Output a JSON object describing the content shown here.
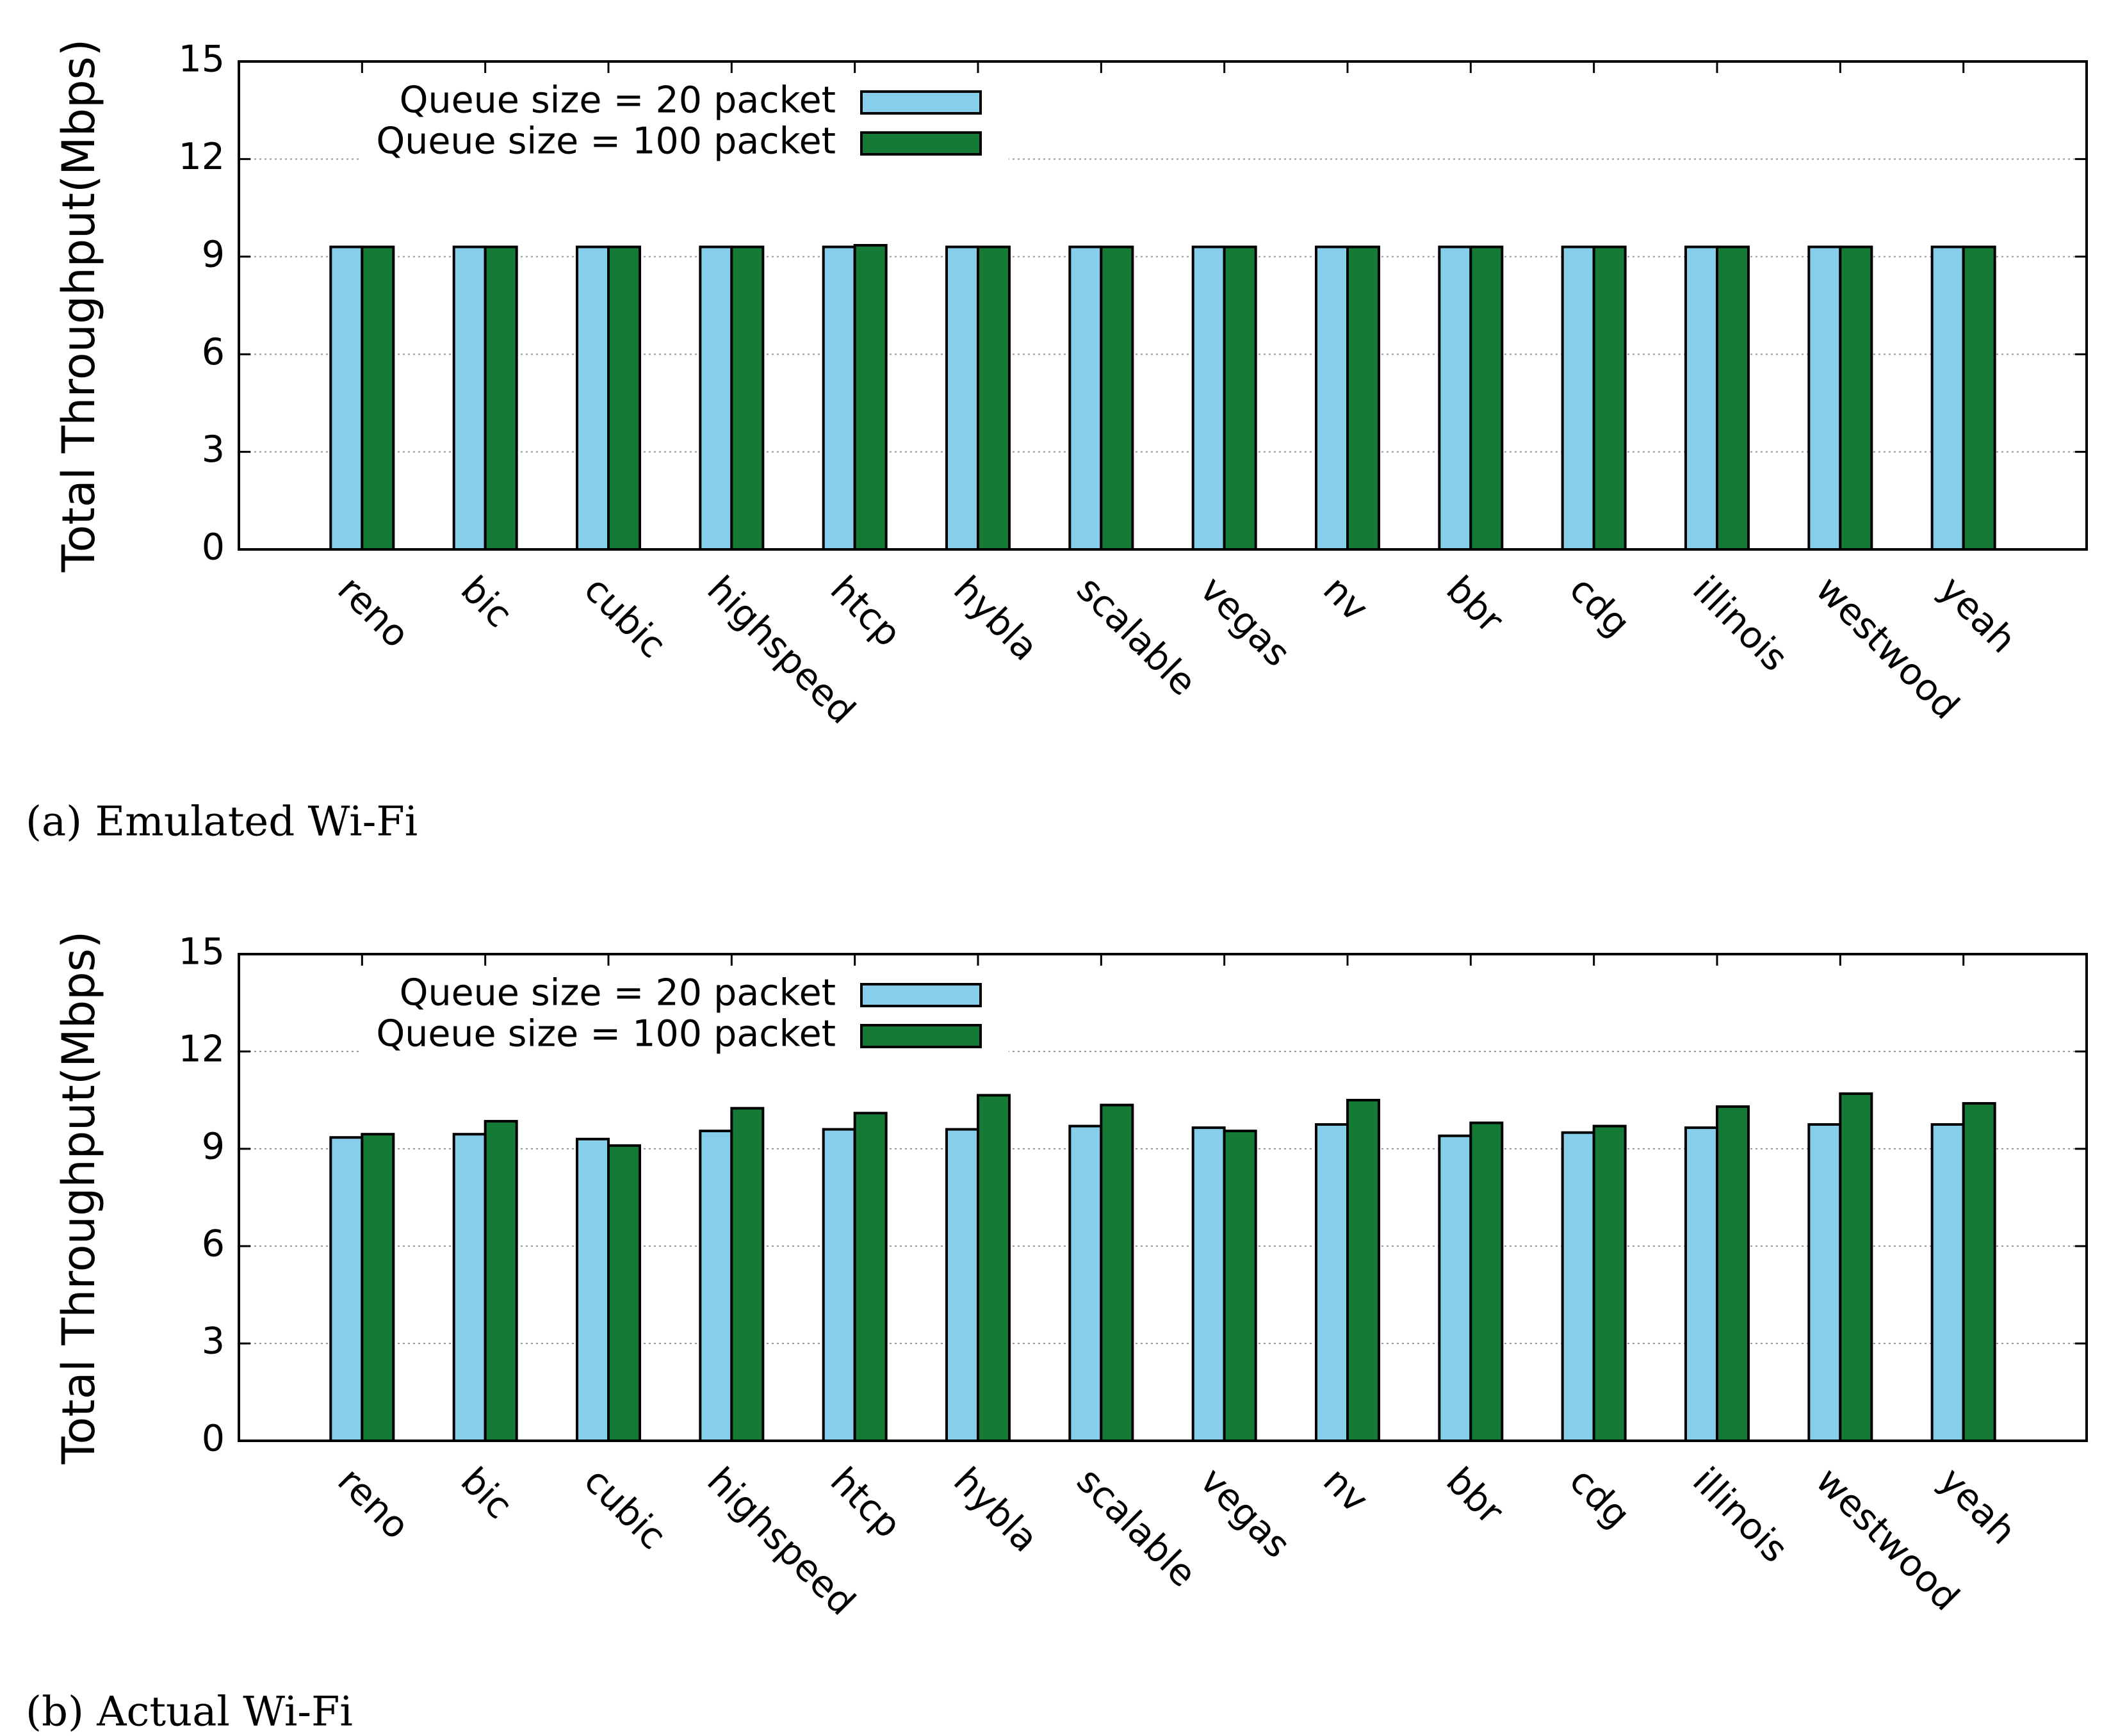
{
  "chart_data": [
    {
      "type": "bar",
      "caption": "(a) Emulated Wi-Fi",
      "ylabel": "Total Throughput(Mbps)",
      "categories": [
        "reno",
        "bic",
        "cubic",
        "highspeed",
        "htcp",
        "hybla",
        "scalable",
        "vegas",
        "nv",
        "bbr",
        "cdg",
        "illinois",
        "westwood",
        "yeah"
      ],
      "series": [
        {
          "name": "Queue size = 20 packet",
          "color": "#87ceeb",
          "values": [
            9.3,
            9.3,
            9.3,
            9.3,
            9.3,
            9.3,
            9.3,
            9.3,
            9.3,
            9.3,
            9.3,
            9.3,
            9.3,
            9.3
          ]
        },
        {
          "name": "Queue size = 100 packet",
          "color": "#157a35",
          "values": [
            9.3,
            9.3,
            9.3,
            9.3,
            9.35,
            9.3,
            9.3,
            9.3,
            9.3,
            9.3,
            9.3,
            9.3,
            9.3,
            9.3
          ]
        }
      ],
      "ylim": [
        0,
        15
      ],
      "yticks": [
        0,
        3,
        6,
        9,
        12,
        15
      ],
      "grid": true,
      "legend": "top"
    },
    {
      "type": "bar",
      "caption": "(b) Actual Wi-Fi",
      "ylabel": "Total Throughput(Mbps)",
      "categories": [
        "reno",
        "bic",
        "cubic",
        "highspeed",
        "htcp",
        "hybla",
        "scalable",
        "vegas",
        "nv",
        "bbr",
        "cdg",
        "illinois",
        "westwood",
        "yeah"
      ],
      "series": [
        {
          "name": "Queue size = 20 packet",
          "color": "#87ceeb",
          "values": [
            9.35,
            9.45,
            9.3,
            9.55,
            9.6,
            9.6,
            9.7,
            9.65,
            9.75,
            9.4,
            9.5,
            9.65,
            9.75,
            9.75
          ]
        },
        {
          "name": "Queue size = 100 packet",
          "color": "#157a35",
          "values": [
            9.45,
            9.85,
            9.1,
            10.25,
            10.1,
            10.65,
            10.35,
            9.55,
            10.5,
            9.8,
            9.7,
            10.3,
            10.7,
            10.4
          ]
        }
      ],
      "ylim": [
        0,
        15
      ],
      "yticks": [
        0,
        3,
        6,
        9,
        12,
        15
      ],
      "grid": true,
      "legend": "top"
    }
  ]
}
